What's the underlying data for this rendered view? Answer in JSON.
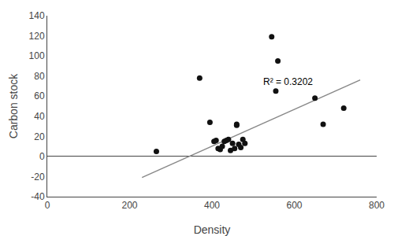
{
  "chart_data": {
    "type": "scatter",
    "xlabel": "Density",
    "ylabel": "Carbon stock",
    "series": [
      {
        "type": "scatter",
        "marker": "circle",
        "color": "#111111",
        "x": [
          265,
          370,
          395,
          405,
          410,
          415,
          420,
          425,
          430,
          435,
          440,
          445,
          450,
          455,
          460,
          460,
          465,
          470,
          475,
          545,
          555,
          560,
          480,
          650,
          670,
          720
        ],
        "values": [
          5,
          78,
          34,
          15,
          16,
          8,
          7,
          10,
          15,
          16,
          17,
          6,
          13,
          8,
          32,
          31,
          12,
          9,
          17,
          119,
          65,
          95,
          13,
          58,
          32,
          48
        ]
      },
      {
        "type": "line",
        "line_style": "solid",
        "color": "#888888",
        "x": [
          230,
          760
        ],
        "values": [
          -20.91,
          76.08
        ]
      }
    ],
    "annotations": [
      {
        "text": "R² = 0.3202",
        "x": 520,
        "y": 74
      }
    ],
    "xlim": [
      0,
      800
    ],
    "xticks": [
      0,
      200,
      400,
      600,
      800
    ],
    "ylim": [
      -40,
      140
    ],
    "yticks": [
      -40,
      -20,
      0,
      20,
      40,
      60,
      80,
      100,
      120,
      140
    ],
    "grid": false
  }
}
